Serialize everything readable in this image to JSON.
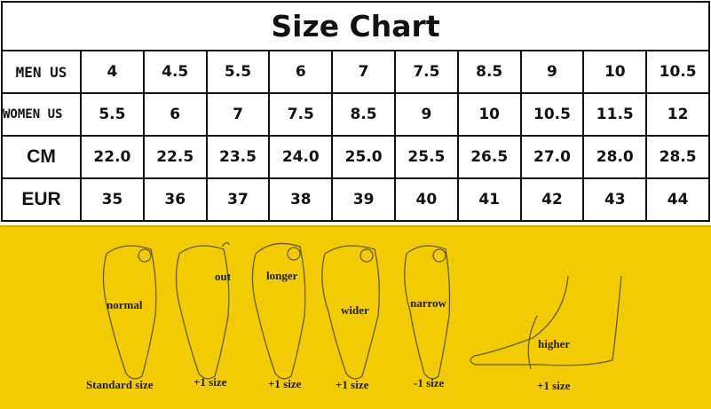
{
  "title": "Size Chart",
  "rows": [
    {
      "label": "MEN US",
      "values": [
        "4",
        "4.5",
        "5.5",
        "6",
        "7",
        "7.5",
        "8.5",
        "9",
        "10",
        "10.5"
      ]
    },
    {
      "label": "WOMEN US",
      "values": [
        "5.5",
        "6",
        "7",
        "7.5",
        "8.5",
        "9",
        "10",
        "10.5",
        "11.5",
        "12"
      ]
    },
    {
      "label": "CM",
      "values": [
        "22.0",
        "22.5",
        "23.5",
        "24.0",
        "25.0",
        "25.5",
        "26.5",
        "27.0",
        "28.0",
        "28.5"
      ]
    },
    {
      "label": "EUR",
      "values": [
        "35",
        "36",
        "37",
        "38",
        "39",
        "40",
        "41",
        "42",
        "43",
        "44"
      ]
    }
  ],
  "guide": {
    "background": "#f3cb05",
    "feet": [
      {
        "type": "normal",
        "advice": "Standard size"
      },
      {
        "type": "out",
        "advice": "+1 size"
      },
      {
        "type": "longer",
        "advice": "+1 size"
      },
      {
        "type": "wider",
        "advice": "+1 size"
      },
      {
        "type": "narrow",
        "advice": "-1 size"
      },
      {
        "type": "higher",
        "advice": "+1 size"
      }
    ]
  }
}
